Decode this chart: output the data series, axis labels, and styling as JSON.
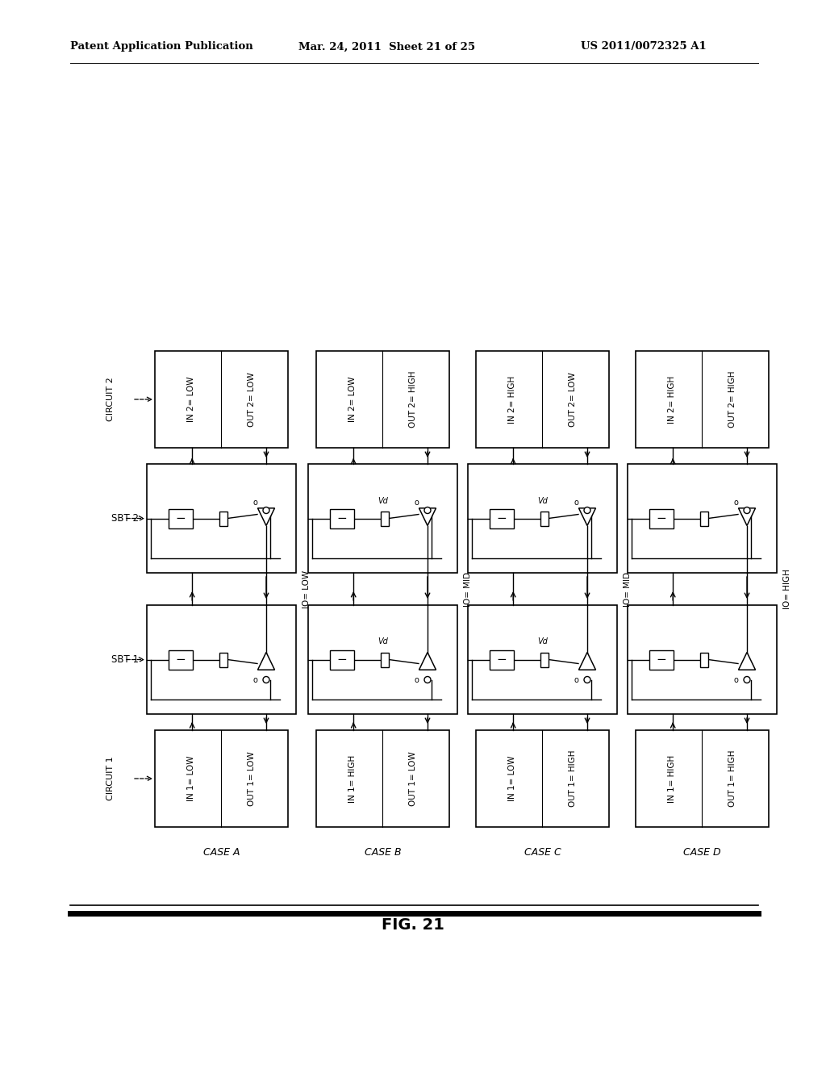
{
  "title": "FIG. 21",
  "header_left": "Patent Application Publication",
  "header_mid": "Mar. 24, 2011  Sheet 21 of 25",
  "header_right": "US 2011/0072325 A1",
  "bg_color": "#ffffff",
  "cases": [
    "CASE A",
    "CASE B",
    "CASE C",
    "CASE D"
  ],
  "circuit1_labels": [
    {
      "in": "IN 1= LOW",
      "out": "OUT 1= LOW"
    },
    {
      "in": "IN 1= HIGH",
      "out": "OUT 1= LOW"
    },
    {
      "in": "IN 1= LOW",
      "out": "OUT 1= HIGH"
    },
    {
      "in": "IN 1= HIGH",
      "out": "OUT 1= HIGH"
    }
  ],
  "circuit2_labels": [
    {
      "in": "IN 2= LOW",
      "out": "OUT 2= LOW"
    },
    {
      "in": "IN 2= LOW",
      "out": "OUT 2= HIGH"
    },
    {
      "in": "IN 2= HIGH",
      "out": "OUT 2= LOW"
    },
    {
      "in": "IN 2= HIGH",
      "out": "OUT 2= HIGH"
    }
  ],
  "io_labels": [
    "IO= LOW",
    "IO= MID",
    "IO= MID",
    "IO= HIGH"
  ],
  "sbt1_has_vd": [
    false,
    true,
    true,
    false
  ],
  "sbt2_has_vd": [
    false,
    true,
    true,
    false
  ],
  "label_left": [
    "CIRCUIT 1",
    "SBT 1",
    "SBT 2",
    "CIRCUIT 2"
  ]
}
